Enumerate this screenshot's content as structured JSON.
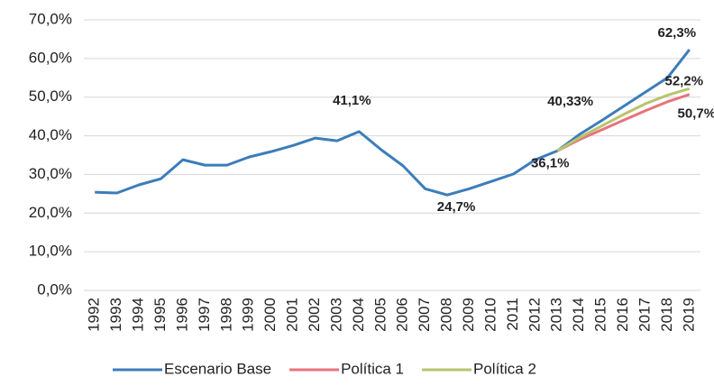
{
  "chart_data": {
    "type": "line",
    "categories": [
      "1992",
      "1993",
      "1994",
      "1995",
      "1996",
      "1997",
      "1998",
      "1999",
      "2000",
      "2001",
      "2002",
      "2003",
      "2004",
      "2005",
      "2006",
      "2007",
      "2008",
      "2009",
      "2010",
      "2011",
      "2012",
      "2013",
      "2014",
      "2015",
      "2016",
      "2017",
      "2018",
      "2019"
    ],
    "series": [
      {
        "name": "Escenario Base",
        "color": "#3c7dba",
        "values": [
          25.4,
          25.2,
          27.3,
          28.9,
          33.8,
          32.4,
          32.4,
          34.5,
          35.9,
          37.5,
          39.4,
          38.7,
          41.1,
          36.4,
          32.2,
          26.3,
          24.7,
          26.3,
          28.2,
          30.1,
          33.8,
          36.1,
          40.33,
          43.9,
          47.6,
          51.3,
          55,
          62.3
        ],
        "value_labels": [
          null,
          null,
          null,
          null,
          null,
          null,
          null,
          null,
          null,
          null,
          null,
          null,
          "41,1%",
          null,
          null,
          null,
          "24,7%",
          null,
          null,
          null,
          null,
          "36,1%",
          "40,33%",
          null,
          null,
          null,
          null,
          "62,3%"
        ]
      },
      {
        "name": "Política 1",
        "color": "#e8737b",
        "values": [
          null,
          null,
          null,
          null,
          null,
          null,
          null,
          null,
          null,
          null,
          null,
          null,
          null,
          null,
          null,
          null,
          null,
          null,
          null,
          null,
          null,
          36.1,
          39,
          41.5,
          44,
          46.5,
          48.8,
          50.7
        ],
        "value_labels": [
          null,
          null,
          null,
          null,
          null,
          null,
          null,
          null,
          null,
          null,
          null,
          null,
          null,
          null,
          null,
          null,
          null,
          null,
          null,
          null,
          null,
          null,
          null,
          null,
          null,
          null,
          null,
          "50,7%"
        ]
      },
      {
        "name": "Política 2",
        "color": "#b8c46c",
        "values": [
          null,
          null,
          null,
          null,
          null,
          null,
          null,
          null,
          null,
          null,
          null,
          null,
          null,
          null,
          null,
          null,
          null,
          null,
          null,
          null,
          null,
          36.1,
          39.5,
          42.5,
          45.5,
          48.3,
          50.5,
          52.2
        ],
        "value_labels": [
          null,
          null,
          null,
          null,
          null,
          null,
          null,
          null,
          null,
          null,
          null,
          null,
          null,
          null,
          null,
          null,
          null,
          null,
          null,
          null,
          null,
          null,
          null,
          null,
          null,
          null,
          null,
          "52,2%"
        ]
      }
    ],
    "ylim": [
      0,
      70
    ],
    "yticks": [
      {
        "value": 0,
        "label": "0,0%"
      },
      {
        "value": 10,
        "label": "10,0%"
      },
      {
        "value": 20,
        "label": "20,0%"
      },
      {
        "value": 30,
        "label": "30,0%"
      },
      {
        "value": 40,
        "label": "40,0%"
      },
      {
        "value": 50,
        "label": "50,0%"
      },
      {
        "value": 60,
        "label": "60,0%"
      },
      {
        "value": 70,
        "label": "70,0%"
      }
    ],
    "grid": true,
    "legend": "bottom"
  }
}
